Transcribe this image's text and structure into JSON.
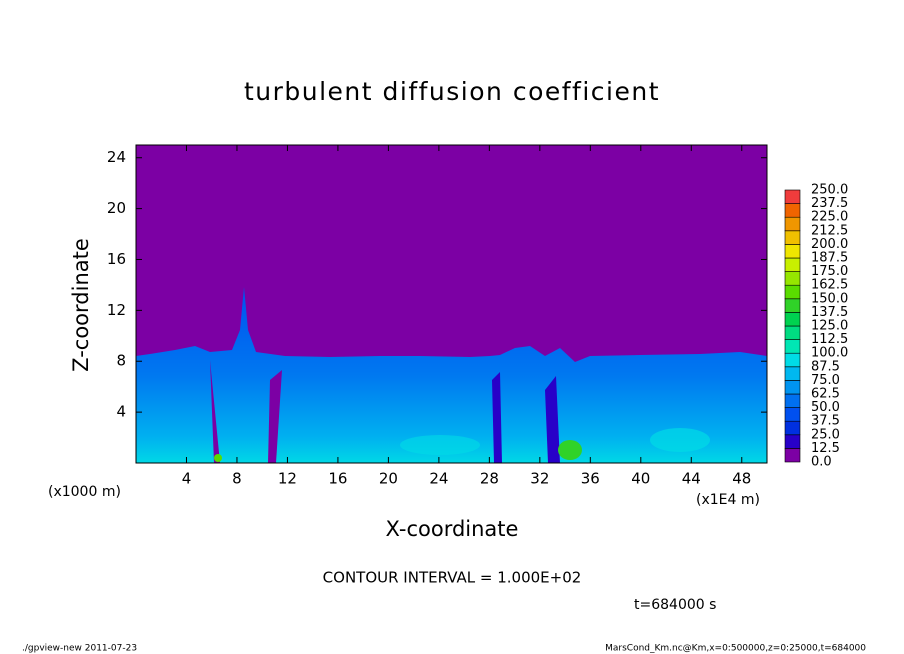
{
  "chart_data": {
    "type": "contour",
    "title": "turbulent diffusion coefficient",
    "x_label": "X-coordinate",
    "y_label": "Z-coordinate",
    "x_unit_left": "(x1000 m)",
    "x_unit_right": "(x1E4 m)",
    "xlim": [
      0,
      50
    ],
    "xticks": [
      4,
      8,
      12,
      16,
      20,
      24,
      28,
      32,
      36,
      40,
      44,
      48
    ],
    "ylim": [
      0,
      25
    ],
    "yticks": [
      4,
      8,
      12,
      16,
      20,
      24
    ],
    "levels": [
      {
        "value": 0,
        "label": "0.0"
      },
      {
        "value": 12.5,
        "label": "12.5"
      },
      {
        "value": 25,
        "label": "25.0"
      },
      {
        "value": 37.5,
        "label": "37.5"
      },
      {
        "value": 50,
        "label": "50.0"
      },
      {
        "value": 62.5,
        "label": "62.5"
      },
      {
        "value": 75,
        "label": "75.0"
      },
      {
        "value": 87.5,
        "label": "87.5"
      },
      {
        "value": 100,
        "label": "100.0"
      },
      {
        "value": 112.5,
        "label": "112.5"
      },
      {
        "value": 125,
        "label": "125.0"
      },
      {
        "value": 137.5,
        "label": "137.5"
      },
      {
        "value": 150,
        "label": "150.0"
      },
      {
        "value": 162.5,
        "label": "162.5"
      },
      {
        "value": 175,
        "label": "175.0"
      },
      {
        "value": 187.5,
        "label": "187.5"
      },
      {
        "value": 200,
        "label": "200.0"
      },
      {
        "value": 212.5,
        "label": "212.5"
      },
      {
        "value": 225,
        "label": "225.0"
      },
      {
        "value": 237.5,
        "label": "237.5"
      },
      {
        "value": 250,
        "label": "250.0"
      }
    ],
    "colors": [
      "#7c00a4",
      "#2800c8",
      "#0030e0",
      "#0050f0",
      "#0070f0",
      "#0094f0",
      "#00b8f0",
      "#00dce6",
      "#00e6b4",
      "#00dc82",
      "#00d250",
      "#30d228",
      "#5adc00",
      "#96e600",
      "#c8f000",
      "#f0e600",
      "#f0c000",
      "#f09600",
      "#f06400",
      "#f03c3c",
      "#f08c8c"
    ],
    "contour_interval": "CONTOUR INTERVAL = 1.000E+02",
    "time_label": "t=684000 s",
    "footer_left": "./gpview-new   2011-07-23",
    "footer_right": "MarsCond_Km.nc@Km,x=0:500000,z=0:25000,t=684000"
  }
}
